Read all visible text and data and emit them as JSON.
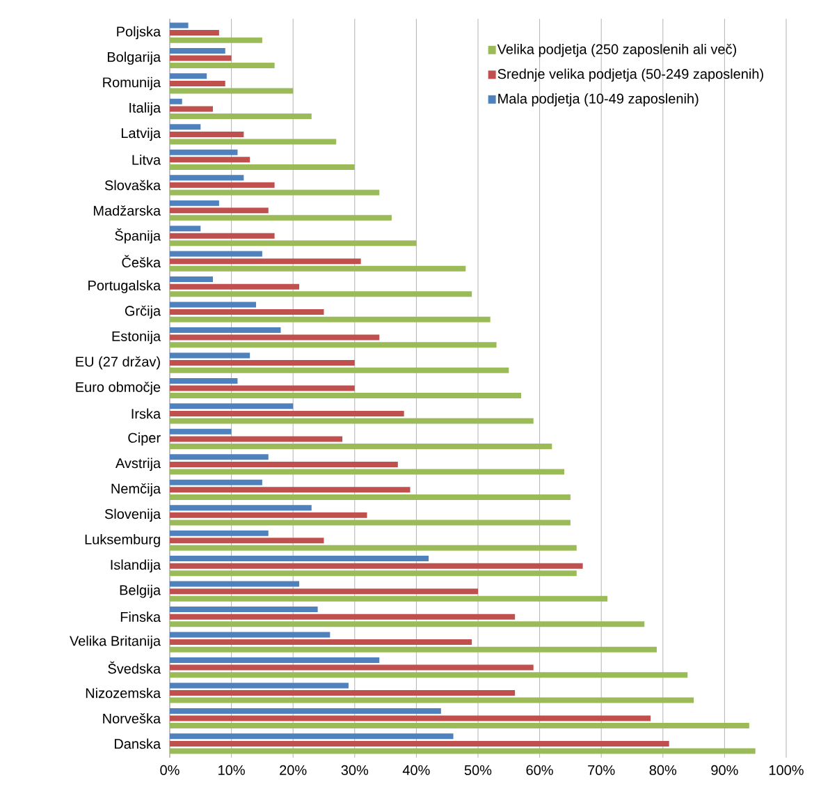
{
  "chart_data": {
    "type": "bar",
    "orientation": "horizontal",
    "categories": [
      "Poljska",
      "Bolgarija",
      "Romunija",
      "Italija",
      "Latvija",
      "Litva",
      "Slovaška",
      "Madžarska",
      "Španija",
      "Češka",
      "Portugalska",
      "Grčija",
      "Estonija",
      "EU (27 držav)",
      "Euro območje",
      "Irska",
      "Ciper",
      "Avstrija",
      "Nemčija",
      "Slovenija",
      "Luksemburg",
      "Islandija",
      "Belgija",
      "Finska",
      "Velika Britanija",
      "Švedska",
      "Nizozemska",
      "Norveška",
      "Danska"
    ],
    "series": [
      {
        "name": "Velika podjetja (250 zaposlenih ali več)",
        "color": "#9bbb59",
        "values": [
          15,
          17,
          20,
          23,
          27,
          30,
          34,
          36,
          40,
          48,
          49,
          52,
          53,
          55,
          57,
          59,
          62,
          64,
          65,
          65,
          66,
          66,
          71,
          77,
          79,
          84,
          85,
          94,
          95
        ]
      },
      {
        "name": "Srednje velika podjetja (50-249 zaposlenih)",
        "color": "#c0504d",
        "values": [
          8,
          10,
          9,
          7,
          12,
          13,
          17,
          16,
          17,
          31,
          21,
          25,
          34,
          30,
          30,
          38,
          28,
          37,
          39,
          32,
          25,
          67,
          50,
          56,
          49,
          59,
          56,
          78,
          81
        ]
      },
      {
        "name": "Mala podjetja (10-49 zaposlenih)",
        "color": "#4f81bd",
        "values": [
          3,
          9,
          6,
          2,
          5,
          11,
          12,
          8,
          5,
          15,
          7,
          14,
          18,
          13,
          11,
          20,
          10,
          16,
          15,
          23,
          16,
          42,
          21,
          24,
          26,
          34,
          29,
          44,
          46
        ]
      }
    ],
    "xlim": [
      0,
      100
    ],
    "xticks": [
      {
        "value": 0,
        "label": "0%"
      },
      {
        "value": 10,
        "label": "10%"
      },
      {
        "value": 20,
        "label": "20%"
      },
      {
        "value": 30,
        "label": "30%"
      },
      {
        "value": 40,
        "label": "40%"
      },
      {
        "value": 50,
        "label": "50%"
      },
      {
        "value": 60,
        "label": "60%"
      },
      {
        "value": 70,
        "label": "70%"
      },
      {
        "value": 80,
        "label": "80%"
      },
      {
        "value": 90,
        "label": "90%"
      },
      {
        "value": 100,
        "label": "100%"
      }
    ],
    "grid": "x",
    "legend": "top right"
  }
}
